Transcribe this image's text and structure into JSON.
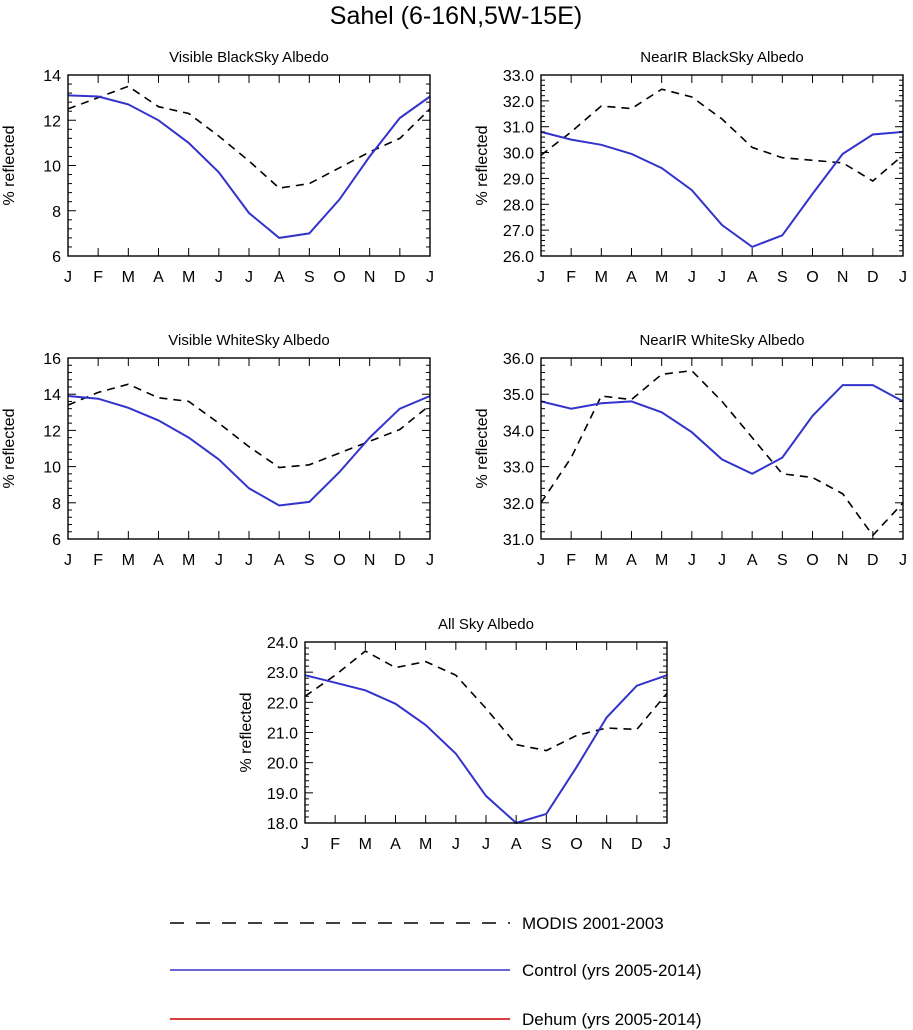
{
  "title": "Sahel (6-16N,5W-15E)",
  "months": [
    "J",
    "F",
    "M",
    "A",
    "M",
    "J",
    "J",
    "A",
    "S",
    "O",
    "N",
    "D",
    "J"
  ],
  "colors": {
    "modis": "#000000",
    "control": "#3333cc",
    "dehum": "#cc0000"
  },
  "legend": [
    {
      "key": "modis",
      "label": "MODIS 2001-2003",
      "style": "dashed"
    },
    {
      "key": "control",
      "label": "Control (yrs 2005-2014)",
      "style": "solid"
    },
    {
      "key": "dehum",
      "label": "Dehum (yrs 2005-2014)",
      "style": "solid"
    }
  ],
  "chart_data": [
    {
      "type": "line",
      "title": "Visible BlackSky Albedo",
      "ylabel": "% reflected",
      "ylim": [
        6,
        14
      ],
      "yticks": [
        6,
        8,
        10,
        12,
        14
      ],
      "ytick_labels": [
        "6",
        "8",
        "10",
        "12",
        "14"
      ],
      "series": [
        {
          "name": "MODIS 2001-2003",
          "values": [
            12.5,
            13.0,
            13.5,
            12.6,
            12.3,
            11.3,
            10.2,
            9.0,
            9.2,
            9.9,
            10.6,
            11.2,
            12.5
          ]
        },
        {
          "name": "Control (yrs 2005-2014)",
          "values": [
            13.1,
            13.05,
            12.7,
            12.0,
            11.0,
            9.7,
            7.9,
            6.8,
            7.0,
            8.5,
            10.4,
            12.1,
            13.05
          ]
        }
      ]
    },
    {
      "type": "line",
      "title": "NearIR BlackSky Albedo",
      "ylabel": "% reflected",
      "ylim": [
        26,
        33
      ],
      "yticks": [
        26,
        27,
        28,
        29,
        30,
        31,
        32,
        33
      ],
      "ytick_labels": [
        "26.0",
        "27.0",
        "28.0",
        "29.0",
        "30.0",
        "31.0",
        "32.0",
        "33.0"
      ],
      "series": [
        {
          "name": "MODIS 2001-2003",
          "values": [
            29.9,
            30.8,
            31.8,
            31.7,
            32.45,
            32.15,
            31.3,
            30.2,
            29.8,
            29.7,
            29.6,
            28.9,
            29.9
          ]
        },
        {
          "name": "Control (yrs 2005-2014)",
          "values": [
            30.8,
            30.5,
            30.3,
            29.95,
            29.4,
            28.55,
            27.2,
            26.35,
            26.8,
            28.4,
            29.95,
            30.7,
            30.8
          ]
        }
      ]
    },
    {
      "type": "line",
      "title": "Visible WhiteSky Albedo",
      "ylabel": "% reflected",
      "ylim": [
        6,
        16
      ],
      "yticks": [
        6,
        8,
        10,
        12,
        14,
        16
      ],
      "ytick_labels": [
        "6",
        "8",
        "10",
        "12",
        "14",
        "16"
      ],
      "series": [
        {
          "name": "MODIS 2001-2003",
          "values": [
            13.4,
            14.1,
            14.55,
            13.8,
            13.6,
            12.4,
            11.1,
            9.95,
            10.1,
            10.75,
            11.4,
            12.05,
            13.4
          ]
        },
        {
          "name": "Control (yrs 2005-2014)",
          "values": [
            13.9,
            13.75,
            13.25,
            12.55,
            11.6,
            10.4,
            8.8,
            7.85,
            8.05,
            9.7,
            11.6,
            13.2,
            13.9
          ]
        }
      ]
    },
    {
      "type": "line",
      "title": "NearIR WhiteSky Albedo",
      "ylabel": "% reflected",
      "ylim": [
        31,
        36
      ],
      "yticks": [
        31,
        32,
        33,
        34,
        35,
        36
      ],
      "ytick_labels": [
        "31.0",
        "32.0",
        "33.0",
        "34.0",
        "35.0",
        "36.0"
      ],
      "series": [
        {
          "name": "MODIS 2001-2003",
          "values": [
            32.0,
            33.25,
            34.95,
            34.85,
            35.55,
            35.65,
            34.8,
            33.8,
            32.8,
            32.7,
            32.25,
            31.1,
            32.0
          ]
        },
        {
          "name": "Control (yrs 2005-2014)",
          "values": [
            34.8,
            34.6,
            34.75,
            34.8,
            34.5,
            33.95,
            33.2,
            32.8,
            33.25,
            34.4,
            35.25,
            35.25,
            34.8
          ]
        }
      ]
    },
    {
      "type": "line",
      "title": "All Sky Albedo",
      "ylabel": "% reflected",
      "ylim": [
        18,
        24
      ],
      "yticks": [
        18,
        19,
        20,
        21,
        22,
        23,
        24
      ],
      "ytick_labels": [
        "18.0",
        "19.0",
        "20.0",
        "21.0",
        "22.0",
        "23.0",
        "24.0"
      ],
      "series": [
        {
          "name": "MODIS 2001-2003",
          "values": [
            22.2,
            22.9,
            23.7,
            23.15,
            23.35,
            22.9,
            21.8,
            20.6,
            20.4,
            20.9,
            21.15,
            21.1,
            22.3
          ]
        },
        {
          "name": "Control (yrs 2005-2014)",
          "values": [
            22.9,
            22.65,
            22.4,
            21.95,
            21.25,
            20.3,
            18.9,
            18.0,
            18.3,
            19.85,
            21.5,
            22.55,
            22.9
          ]
        }
      ]
    }
  ]
}
